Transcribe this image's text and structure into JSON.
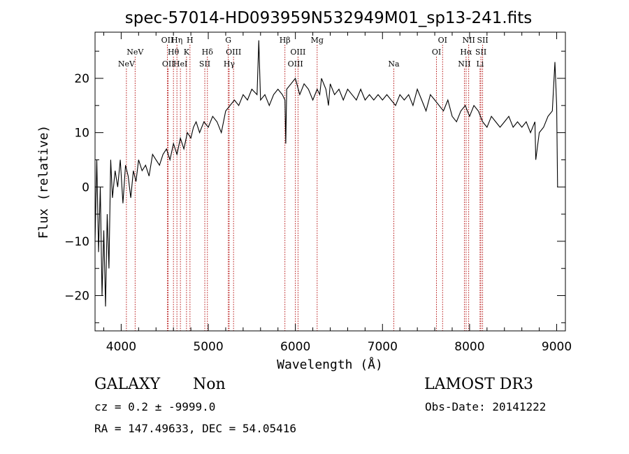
{
  "chart_data": {
    "type": "line",
    "title": "spec-57014-HD093959N532949M01_sp13-241.fits",
    "xlabel": "Wavelength (Å)",
    "ylabel": "Flux (relative)",
    "xlim": [
      3700,
      9100
    ],
    "ylim": [
      -26.5,
      28.5
    ],
    "x_ticks": [
      4000,
      5000,
      6000,
      7000,
      8000,
      9000
    ],
    "y_ticks": [
      -20,
      -10,
      0,
      10,
      20
    ],
    "grid": false,
    "series": [
      {
        "name": "flux",
        "x": [
          3700,
          3720,
          3740,
          3760,
          3780,
          3800,
          3820,
          3840,
          3860,
          3880,
          3900,
          3930,
          3960,
          3990,
          4020,
          4050,
          4080,
          4110,
          4140,
          4170,
          4200,
          4240,
          4280,
          4320,
          4360,
          4400,
          4440,
          4480,
          4520,
          4560,
          4600,
          4640,
          4680,
          4720,
          4760,
          4800,
          4830,
          4860,
          4900,
          4950,
          5000,
          5050,
          5100,
          5150,
          5200,
          5250,
          5300,
          5350,
          5400,
          5450,
          5500,
          5560,
          5580,
          5600,
          5650,
          5700,
          5750,
          5800,
          5850,
          5880,
          5890,
          5900,
          5950,
          6000,
          6050,
          6100,
          6150,
          6200,
          6250,
          6280,
          6300,
          6350,
          6380,
          6400,
          6450,
          6500,
          6550,
          6600,
          6650,
          6700,
          6750,
          6800,
          6850,
          6900,
          6950,
          7000,
          7050,
          7100,
          7150,
          7200,
          7250,
          7300,
          7350,
          7400,
          7450,
          7500,
          7550,
          7600,
          7650,
          7700,
          7750,
          7800,
          7850,
          7900,
          7950,
          8000,
          8050,
          8100,
          8150,
          8200,
          8250,
          8300,
          8350,
          8400,
          8450,
          8500,
          8550,
          8600,
          8650,
          8700,
          8750,
          8760,
          8800,
          8850,
          8900,
          8950,
          8980,
          9000,
          9010
        ],
        "y": [
          -10,
          5,
          -12,
          0,
          -20,
          -8,
          -22,
          -5,
          -15,
          5,
          -2,
          3,
          0,
          5,
          -3,
          4,
          2,
          -2,
          3,
          1,
          5,
          3,
          4,
          2,
          6,
          5,
          4,
          6,
          7,
          5,
          8,
          6,
          9,
          7,
          10,
          9,
          11,
          12,
          10,
          12,
          11,
          13,
          12,
          10,
          14,
          15,
          16,
          15,
          17,
          16,
          18,
          17,
          27,
          16,
          17,
          15,
          17,
          18,
          17,
          16,
          8,
          18,
          19,
          20,
          17,
          19,
          18,
          16,
          18,
          17,
          20,
          18,
          15,
          19,
          17,
          18,
          16,
          18,
          17,
          16,
          18,
          16,
          17,
          16,
          17,
          16,
          17,
          16,
          15,
          17,
          16,
          17,
          15,
          18,
          16,
          14,
          17,
          16,
          15,
          14,
          16,
          13,
          12,
          14,
          15,
          13,
          15,
          14,
          12,
          11,
          13,
          12,
          11,
          12,
          13,
          11,
          12,
          11,
          12,
          10,
          12,
          5,
          10,
          11,
          13,
          14,
          23,
          15,
          0
        ],
        "color": "#000000"
      }
    ],
    "line_marks": [
      {
        "wavelength": 4060,
        "label": "NeV",
        "row": 2
      },
      {
        "wavelength": 4160,
        "label": "NeV",
        "row": 1
      },
      {
        "wavelength": 4530,
        "label": "OII",
        "row": 0
      },
      {
        "wavelength": 4540,
        "label": "OII",
        "row": 2
      },
      {
        "wavelength": 4600,
        "label": "Hθ",
        "row": 1
      },
      {
        "wavelength": 4640,
        "label": "Hη",
        "row": 0
      },
      {
        "wavelength": 4680,
        "label": "HeI",
        "row": 2
      },
      {
        "wavelength": 4750,
        "label": "K",
        "row": 1
      },
      {
        "wavelength": 4790,
        "label": "H",
        "row": 0
      },
      {
        "wavelength": 4960,
        "label": "SII",
        "row": 2
      },
      {
        "wavelength": 4990,
        "label": "Hδ",
        "row": 1
      },
      {
        "wavelength": 5230,
        "label": "G",
        "row": 0
      },
      {
        "wavelength": 5240,
        "label": "Hγ",
        "row": 2
      },
      {
        "wavelength": 5290,
        "label": "OIII",
        "row": 1
      },
      {
        "wavelength": 5880,
        "label": "Hβ",
        "row": 0
      },
      {
        "wavelength": 6000,
        "label": "OIII",
        "row": 2
      },
      {
        "wavelength": 6030,
        "label": "OIII",
        "row": 1
      },
      {
        "wavelength": 6250,
        "label": "Mg",
        "row": 0
      },
      {
        "wavelength": 7130,
        "label": "Na",
        "row": 2
      },
      {
        "wavelength": 7620,
        "label": "OI",
        "row": 1
      },
      {
        "wavelength": 7690,
        "label": "OI",
        "row": 0
      },
      {
        "wavelength": 7940,
        "label": "NII",
        "row": 2
      },
      {
        "wavelength": 7960,
        "label": "Hα",
        "row": 1
      },
      {
        "wavelength": 7990,
        "label": "NII",
        "row": 0
      },
      {
        "wavelength": 8120,
        "label": "Li",
        "row": 2
      },
      {
        "wavelength": 8130,
        "label": "SII",
        "row": 1
      },
      {
        "wavelength": 8150,
        "label": "SII",
        "row": 0
      }
    ]
  },
  "info": {
    "class_label": "GALAXY",
    "subclass_label": "Non",
    "survey": "LAMOST DR3",
    "cz": "cz = 0.2 ± -9999.0",
    "obs_date": "Obs-Date: 20141222",
    "coords": "RA = 147.49633, DEC =  54.05416"
  }
}
